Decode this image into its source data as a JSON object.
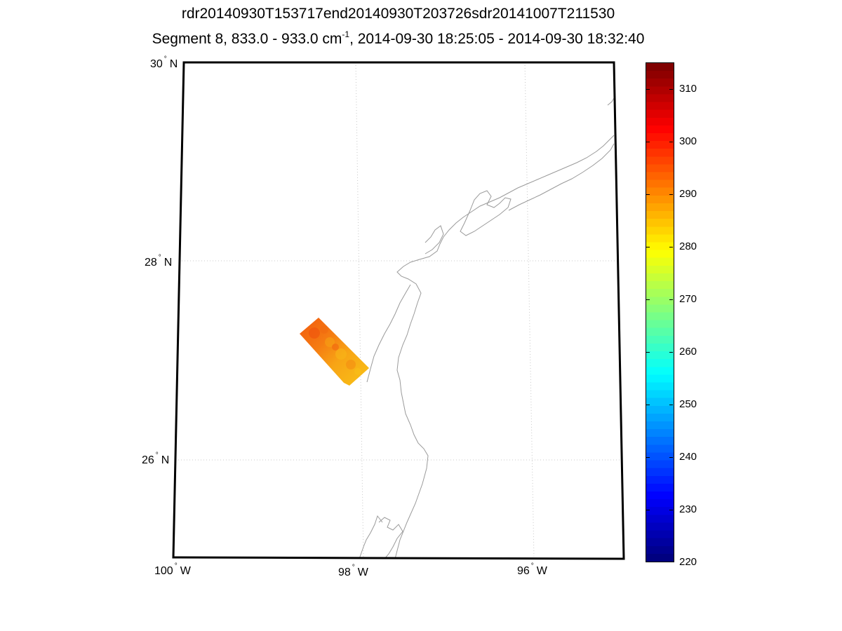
{
  "figure": {
    "title_line1": "rdr20140930T153717end20140930T203726sdr20141007T211530",
    "title_line2_pre": "Segment 8, 833.0 - 933.0 cm",
    "title_line2_sup": "-1",
    "title_line2_post": ", 2014-09-30 18:25:05 - 2014-09-30 18:32:40"
  },
  "map": {
    "lat_labels": [
      {
        "deg": "30",
        "hemi": "N"
      },
      {
        "deg": "28",
        "hemi": "N"
      },
      {
        "deg": "26",
        "hemi": "N"
      }
    ],
    "lon_labels": [
      {
        "deg": "100",
        "hemi": "W"
      },
      {
        "deg": "98",
        "hemi": "W"
      },
      {
        "deg": "96",
        "hemi": "W"
      }
    ],
    "swath_label": "brightness temperature swath"
  },
  "colorbar": {
    "min": 220,
    "max": 315,
    "ticks": [
      "310",
      "300",
      "290",
      "280",
      "270",
      "260",
      "250",
      "240",
      "230",
      "220"
    ],
    "colors": {
      "low": "#00008f",
      "high": "#800000"
    }
  }
}
